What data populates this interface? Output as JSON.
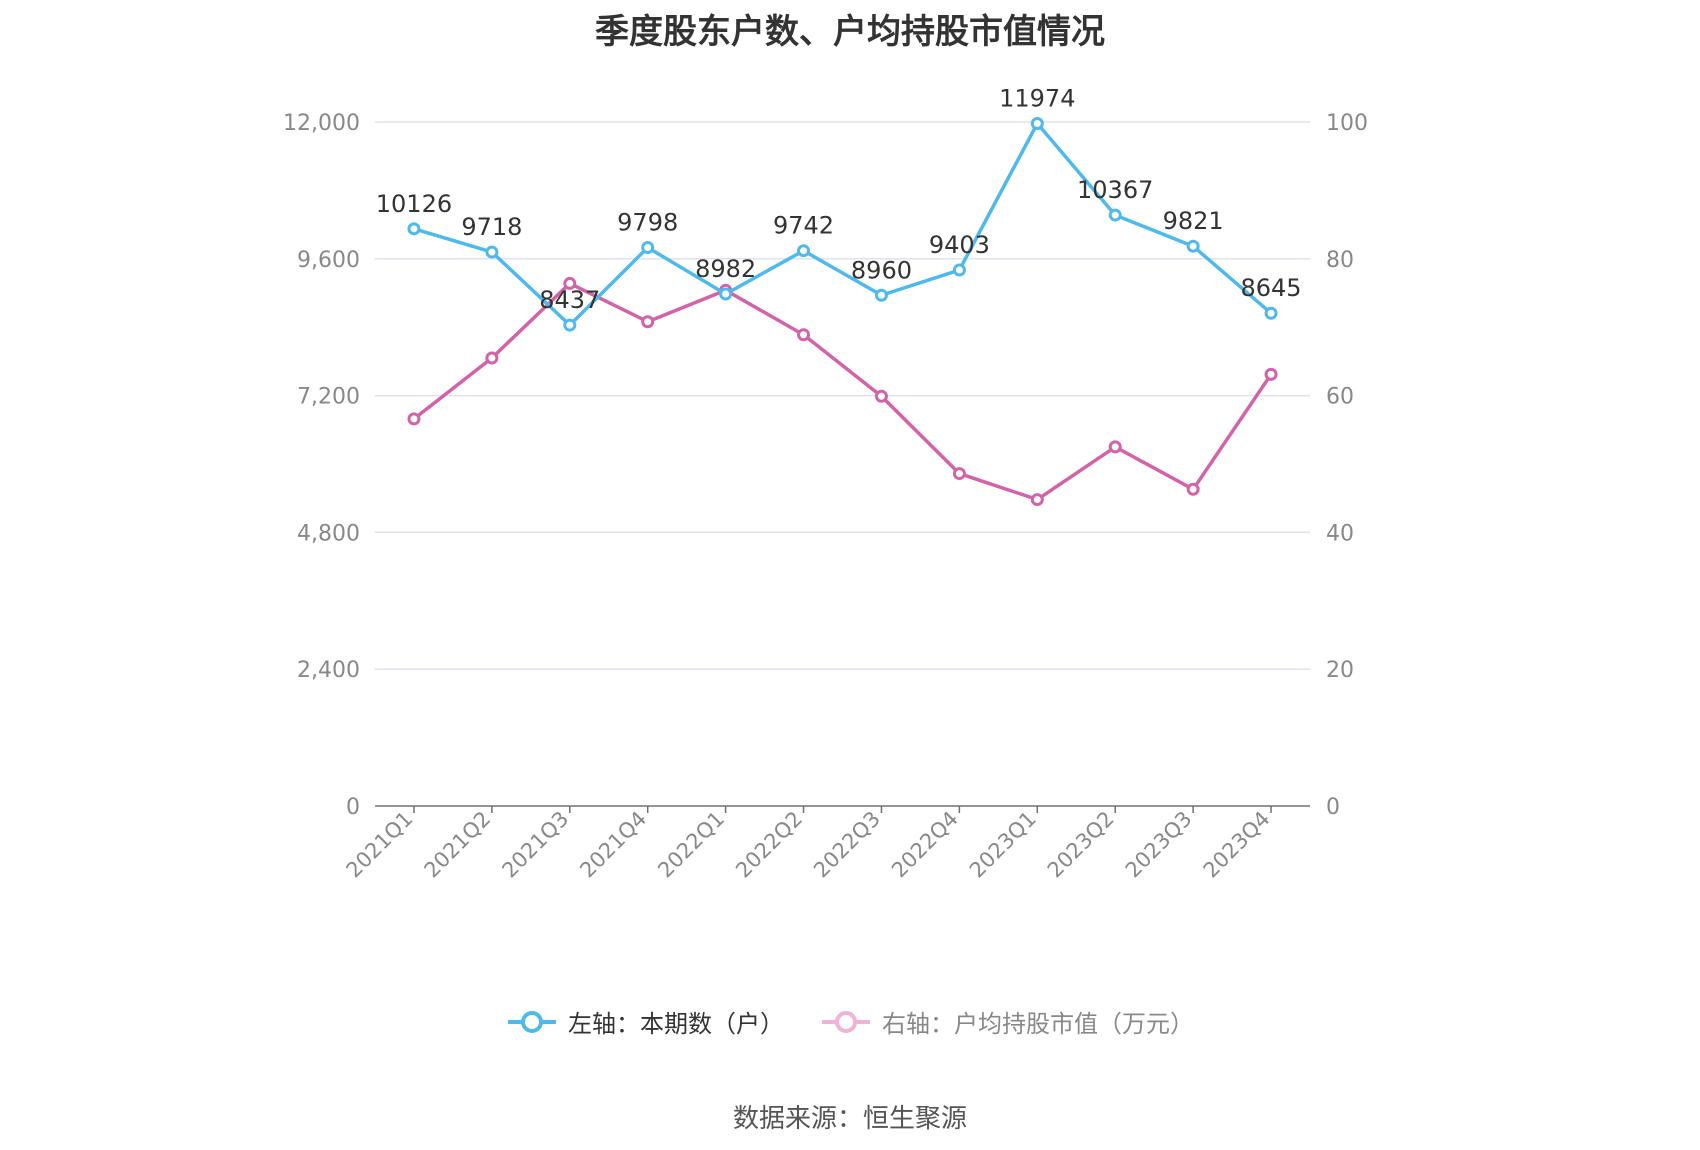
{
  "chart_data": {
    "type": "line",
    "title": "季度股东户数、户均持股市值情况",
    "categories": [
      "2021Q1",
      "2021Q2",
      "2021Q3",
      "2021Q4",
      "2022Q1",
      "2022Q2",
      "2022Q3",
      "2022Q4",
      "2023Q1",
      "2023Q2",
      "2023Q3",
      "2023Q4"
    ],
    "left_axis": {
      "ylim": [
        0,
        12000
      ],
      "ticks": [
        "0",
        "2,400",
        "4,800",
        "7,200",
        "9,600",
        "12,000"
      ]
    },
    "right_axis": {
      "ylim": [
        0,
        100
      ],
      "ticks": [
        "0",
        "20",
        "40",
        "60",
        "80",
        "100"
      ]
    },
    "series": [
      {
        "name": "左轴：本期数（户）",
        "axis": "left",
        "color": "#4fb9ec",
        "values": [
          10126,
          9718,
          8437,
          9798,
          8982,
          9742,
          8960,
          9403,
          11974,
          10367,
          9821,
          8645
        ],
        "labels": [
          "10126",
          "9718",
          "8437",
          "9798",
          "8982",
          "9742",
          "8960",
          "9403",
          "11974",
          "10367",
          "9821",
          "8645"
        ]
      },
      {
        "name": "右轴：户均持股市值（万元）",
        "axis": "right",
        "color": "#d263a9",
        "values": [
          56.6,
          65.5,
          76.4,
          70.8,
          75.4,
          68.9,
          59.9,
          48.6,
          44.8,
          52.5,
          46.3,
          63.1
        ]
      }
    ],
    "grid": true,
    "legend_position": "bottom"
  },
  "source": "数据来源：恒生聚源"
}
